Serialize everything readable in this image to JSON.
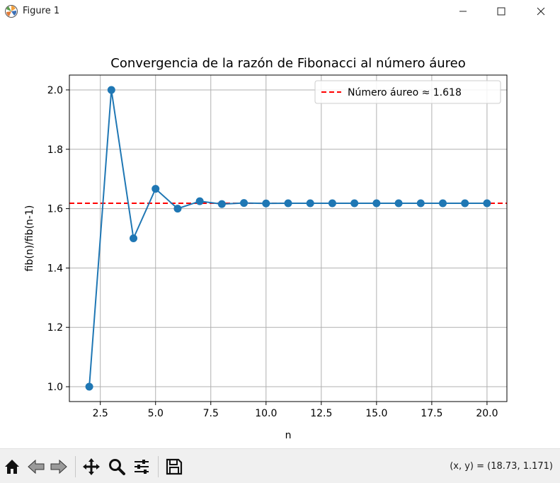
{
  "window": {
    "title": "Figure 1",
    "icon": "matplotlib-icon",
    "controls": [
      "minimize-icon",
      "maximize-icon",
      "close-icon"
    ]
  },
  "toolbar": {
    "tools": [
      "home-icon",
      "back-icon",
      "forward-icon",
      "pan-icon",
      "zoom-icon",
      "configure-subplots-icon",
      "save-icon"
    ],
    "coords_text": "(x, y) = (18.73, 1.171)"
  },
  "chart_data": {
    "type": "line",
    "title": "Convergencia de la razón de Fibonacci al número áureo",
    "xlabel": "n",
    "ylabel": "fib(n)/fib(n-1)",
    "xlim": [
      1.1,
      20.9
    ],
    "ylim": [
      0.95,
      2.05
    ],
    "xticks": [
      2.5,
      5.0,
      7.5,
      10.0,
      12.5,
      15.0,
      17.5,
      20.0
    ],
    "xtick_labels": [
      "2.5",
      "5.0",
      "7.5",
      "10.0",
      "12.5",
      "15.0",
      "17.5",
      "20.0"
    ],
    "yticks": [
      1.0,
      1.2,
      1.4,
      1.6,
      1.8,
      2.0
    ],
    "ytick_labels": [
      "1.0",
      "1.2",
      "1.4",
      "1.6",
      "1.8",
      "2.0"
    ],
    "grid": true,
    "legend_position": "upper right",
    "series": [
      {
        "marker": "circle",
        "color": "#1f77b4",
        "x": [
          2,
          3,
          4,
          5,
          6,
          7,
          8,
          9,
          10,
          11,
          12,
          13,
          14,
          15,
          16,
          17,
          18,
          19,
          20
        ],
        "y": [
          1.0,
          2.0,
          1.5,
          1.6667,
          1.6,
          1.625,
          1.6154,
          1.619,
          1.6176,
          1.6182,
          1.618,
          1.6181,
          1.618,
          1.618,
          1.618,
          1.618,
          1.618,
          1.618,
          1.618
        ]
      }
    ],
    "hline": {
      "y": 1.618,
      "label": "Número áureo ≈ 1.618",
      "color": "#ff0000",
      "style": "dashed"
    }
  }
}
